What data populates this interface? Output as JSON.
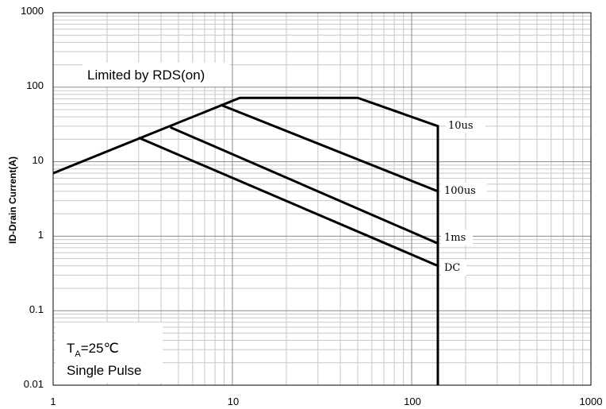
{
  "chart_data": {
    "type": "line",
    "xlabel": "",
    "ylabel": "ID-Drain Current(A)",
    "x_scale": "log",
    "y_scale": "log",
    "xlim": [
      1,
      1000
    ],
    "ylim": [
      0.01,
      1000
    ],
    "x_ticks": [
      "1",
      "10",
      "100",
      "1000"
    ],
    "y_ticks": [
      "0.01",
      "0.1",
      "1",
      "10",
      "100",
      "1000"
    ],
    "grid": true,
    "annotations": {
      "limit_text": "Limited by RDS(on)",
      "temp_prefix": "T",
      "temp_sub": "A",
      "temp_suffix": "=25℃",
      "pulse_text": "Single Pulse"
    },
    "series": [
      {
        "name": "10us",
        "x": [
          1,
          11,
          50,
          140,
          140
        ],
        "y": [
          7,
          72,
          72,
          30,
          0.01
        ]
      },
      {
        "name": "100us",
        "x": [
          8.6,
          140
        ],
        "y": [
          58,
          4
        ]
      },
      {
        "name": "1ms",
        "x": [
          4.5,
          140
        ],
        "y": [
          29,
          0.8
        ]
      },
      {
        "name": "DC",
        "x": [
          3,
          140
        ],
        "y": [
          21,
          0.4
        ]
      }
    ]
  }
}
